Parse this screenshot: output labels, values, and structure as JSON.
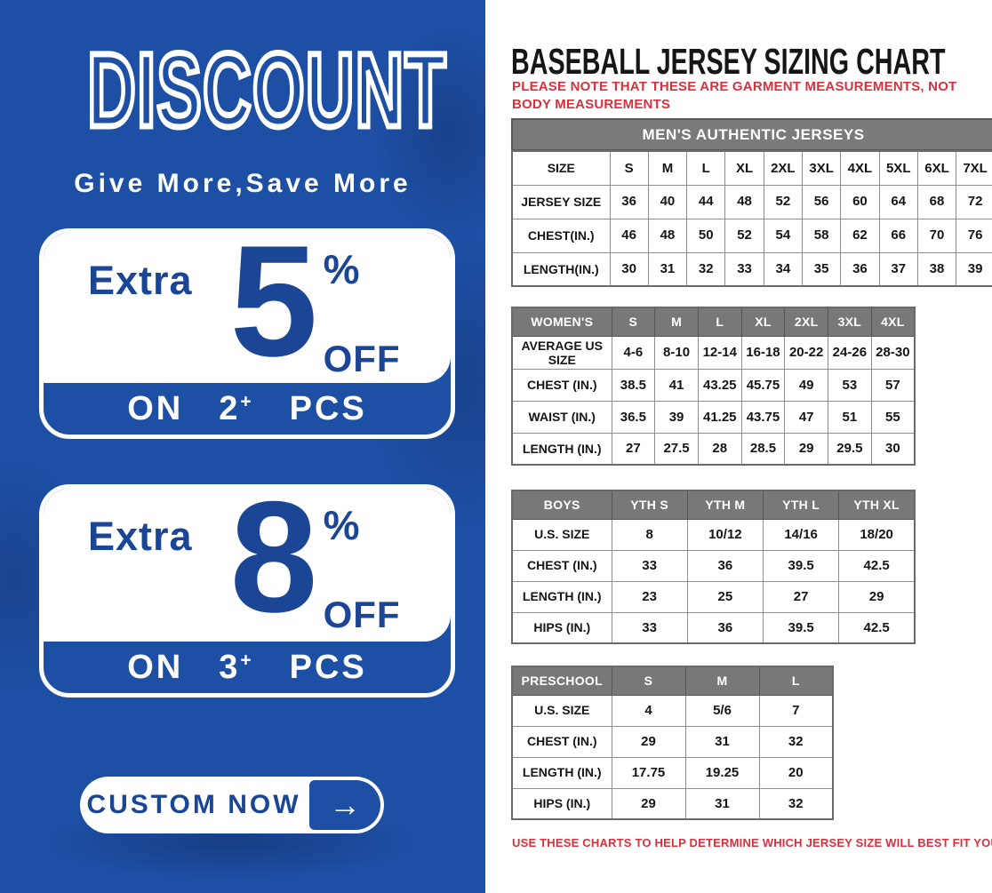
{
  "colors": {
    "panel_blue": "#1d4fa4",
    "text_blue": "#1b4696",
    "alert_red": "#d4323e",
    "table_header_gray": "#7a7a7a"
  },
  "promo": {
    "title": "DISCOUNT",
    "subtitle": "Give More,Save More",
    "offers": [
      {
        "prefix": "Extra",
        "percent": "5",
        "percent_sign": "%",
        "off_label": "OFF",
        "on_label": "ON",
        "qty": "2",
        "plus": "+",
        "unit_label": "PCS"
      },
      {
        "prefix": "Extra",
        "percent": "8",
        "percent_sign": "%",
        "off_label": "OFF",
        "on_label": "ON",
        "qty": "3",
        "plus": "+",
        "unit_label": "PCS"
      }
    ],
    "cta": {
      "label": "CUSTOM NOW",
      "arrow": "→"
    }
  },
  "sizing": {
    "title": "BASEBALL JERSEY SIZING CHART",
    "note_top": "PLEASE NOTE THAT THESE ARE GARMENT MEASUREMENTS, NOT BODY MEASUREMENTS",
    "note_bottom": "USE THESE CHARTS TO HELP DETERMINE WHICH JERSEY SIZE WILL BEST FIT YOU.",
    "tables": {
      "men": {
        "banner": "MEN'S AUTHENTIC JERSEYS",
        "head": null,
        "rows": [
          [
            "SIZE",
            "S",
            "M",
            "L",
            "XL",
            "2XL",
            "3XL",
            "4XL",
            "5XL",
            "6XL",
            "7XL"
          ],
          [
            "JERSEY SIZE",
            "36",
            "40",
            "44",
            "48",
            "52",
            "56",
            "60",
            "64",
            "68",
            "72"
          ],
          [
            "CHEST(IN.)",
            "46",
            "48",
            "50",
            "52",
            "54",
            "58",
            "62",
            "66",
            "70",
            "76"
          ],
          [
            "LENGTH(IN.)",
            "30",
            "31",
            "32",
            "33",
            "34",
            "35",
            "36",
            "37",
            "38",
            "39"
          ]
        ]
      },
      "women": {
        "banner": null,
        "head": [
          "WOMEN'S",
          "S",
          "M",
          "L",
          "XL",
          "2XL",
          "3XL",
          "4XL"
        ],
        "rows": [
          [
            "AVERAGE US SIZE",
            "4-6",
            "8-10",
            "12-14",
            "16-18",
            "20-22",
            "24-26",
            "28-30"
          ],
          [
            "CHEST (IN.)",
            "38.5",
            "41",
            "43.25",
            "45.75",
            "49",
            "53",
            "57"
          ],
          [
            "WAIST (IN.)",
            "36.5",
            "39",
            "41.25",
            "43.75",
            "47",
            "51",
            "55"
          ],
          [
            "LENGTH (IN.)",
            "27",
            "27.5",
            "28",
            "28.5",
            "29",
            "29.5",
            "30"
          ]
        ]
      },
      "boys": {
        "banner": null,
        "head": [
          "BOYS",
          "YTH S",
          "YTH M",
          "YTH L",
          "YTH XL"
        ],
        "rows": [
          [
            "U.S. SIZE",
            "8",
            "10/12",
            "14/16",
            "18/20"
          ],
          [
            "CHEST (IN.)",
            "33",
            "36",
            "39.5",
            "42.5"
          ],
          [
            "LENGTH (IN.)",
            "23",
            "25",
            "27",
            "29"
          ],
          [
            "HIPS (IN.)",
            "33",
            "36",
            "39.5",
            "42.5"
          ]
        ]
      },
      "preschool": {
        "banner": null,
        "head": [
          "PRESCHOOL",
          "S",
          "M",
          "L"
        ],
        "rows": [
          [
            "U.S. SIZE",
            "4",
            "5/6",
            "7"
          ],
          [
            "CHEST (IN.)",
            "29",
            "31",
            "32"
          ],
          [
            "LENGTH (IN.)",
            "17.75",
            "19.25",
            "20"
          ],
          [
            "HIPS (IN.)",
            "29",
            "31",
            "32"
          ]
        ]
      }
    }
  }
}
